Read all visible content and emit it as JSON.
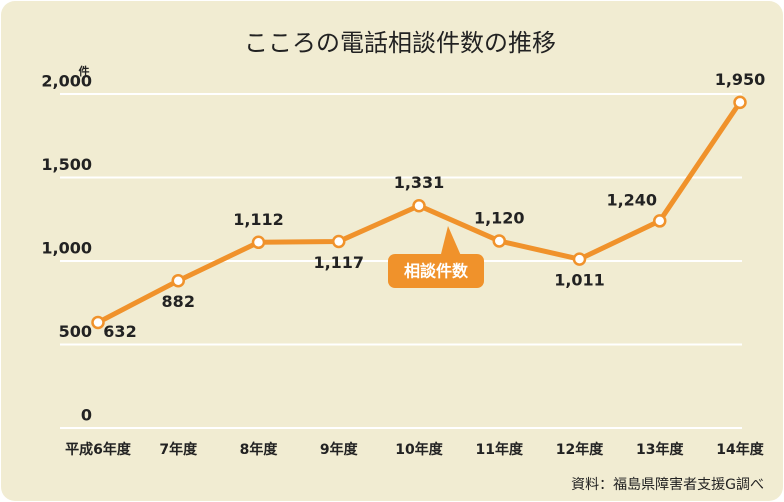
{
  "chart_data": {
    "type": "line",
    "title": "こころの電話相談件数の推移",
    "y_unit": "件",
    "categories": [
      "平成6年度",
      "7年度",
      "8年度",
      "9年度",
      "10年度",
      "11年度",
      "12年度",
      "13年度",
      "14年度"
    ],
    "series": [
      {
        "name": "相談件数",
        "color": "#f0922b",
        "values": [
          632,
          882,
          1112,
          1117,
          1331,
          1120,
          1011,
          1240,
          1950
        ],
        "value_labels": [
          "632",
          "882",
          "1,112",
          "1,117",
          "1,331",
          "1,120",
          "1,011",
          "1,240",
          "1,950"
        ]
      }
    ],
    "ylim": [
      0,
      2000
    ],
    "yticks": [
      0,
      500,
      {
        "value": 1000,
        "label": "1,000"
      },
      {
        "value": 1500,
        "label": "1,500"
      },
      {
        "value": 2000,
        "label": "2,000"
      }
    ],
    "grid": true,
    "source": "資料：福島県障害者支援G調べ"
  }
}
